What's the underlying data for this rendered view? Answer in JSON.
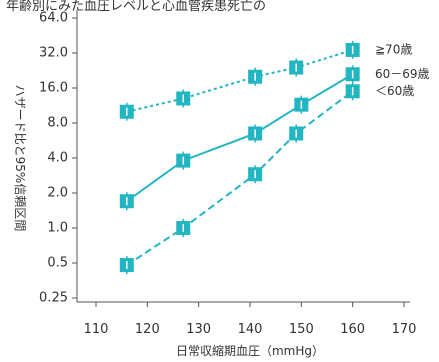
{
  "chart_data": {
    "type": "line",
    "title": "",
    "xlabel": "日常収縮期血圧（mmHg）",
    "ylabel": "ハザード比と95%信頼区間",
    "x_ticks": [
      "110",
      "120",
      "130",
      "140",
      "150",
      "160",
      "170"
    ],
    "y_ticks": [
      "0.25",
      "0.5",
      "1.0",
      "2.0",
      "4.0",
      "8.0",
      "16.0",
      "32.0",
      "64.0"
    ],
    "xlim": [
      110,
      170
    ],
    "ylim": [
      0.25,
      64
    ],
    "y_scale": "log2",
    "grid": false,
    "legend": "inline-right",
    "colors": {
      "series": "#22b5c2",
      "axis": "#555555",
      "text": "#333333"
    },
    "series": [
      {
        "name": "≧70歳",
        "line_style": "dotted",
        "x": [
          116,
          127,
          141,
          149,
          160
        ],
        "values": [
          10,
          13,
          20,
          24,
          34
        ]
      },
      {
        "name": "60－69歳",
        "line_style": "solid",
        "x": [
          116,
          127,
          141,
          150,
          160
        ],
        "values": [
          1.7,
          3.8,
          6.5,
          11.5,
          21
        ]
      },
      {
        "name": "＜60歳",
        "line_style": "dashed",
        "x": [
          116,
          127,
          141,
          149,
          160
        ],
        "values": [
          0.48,
          1.0,
          2.9,
          6.5,
          15
        ]
      }
    ]
  },
  "top_clipped_text": "年齢別にみた血圧レベルと心血管疾患死亡の"
}
